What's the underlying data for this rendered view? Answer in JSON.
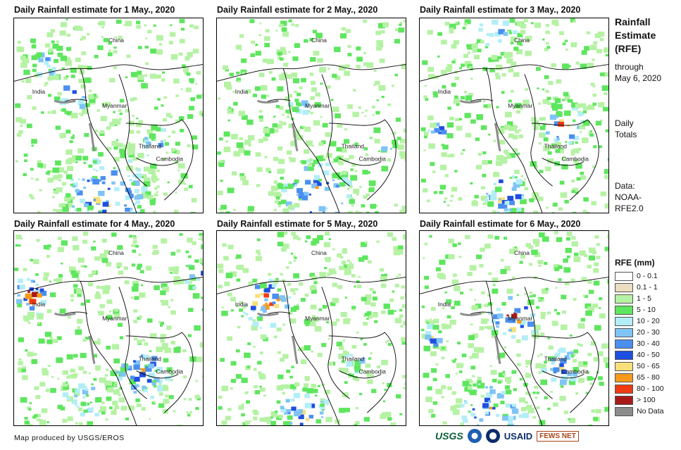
{
  "panels": [
    {
      "title": "Daily Rainfall estimate for 1 May., 2020",
      "labels": {
        "china": "China",
        "india": "India",
        "myanmar": "Myanmar",
        "thailand": "Thailand",
        "cambodia": "Cambodia"
      }
    },
    {
      "title": "Daily Rainfall estimate for 2 May., 2020",
      "labels": {
        "china": "China",
        "india": "India",
        "myanmar": "Myanmar",
        "thailand": "Thailand",
        "cambodia": "Cambodia"
      }
    },
    {
      "title": "Daily Rainfall estimate for 3 May., 2020",
      "labels": {
        "china": "China",
        "india": "India",
        "myanmar": "Myanmar",
        "thailand": "Thailand",
        "cambodia": "Cambodia"
      }
    },
    {
      "title": "Daily Rainfall estimate for 4 May., 2020",
      "labels": {
        "china": "China",
        "india": "India",
        "myanmar": "Myanmar",
        "thailand": "Thailand",
        "cambodia": "Cambodia"
      }
    },
    {
      "title": "Daily Rainfall estimate for 5 May., 2020",
      "labels": {
        "china": "China",
        "india": "India",
        "myanmar": "Myanmar",
        "thailand": "Thailand",
        "cambodia": "Cambodia"
      }
    },
    {
      "title": "Daily Rainfall estimate for 6 May., 2020",
      "labels": {
        "china": "China",
        "india": "India",
        "myanmar": "Myanmar",
        "thailand": "Thailand",
        "cambodia": "Cambodia"
      }
    }
  ],
  "sidebar": {
    "title_lines": [
      "Rainfall",
      "Estimate",
      "(RFE)"
    ],
    "through_lines": [
      "through",
      "May 6, 2020"
    ],
    "totals_lines": [
      "Daily",
      "Totals"
    ],
    "data_lines": [
      "Data:",
      "NOAA-",
      "RFE2.0"
    ]
  },
  "legend": {
    "title": "RFE (mm)",
    "items": [
      {
        "label": "0 - 0.1",
        "color": "#ffffff"
      },
      {
        "label": "0.1 - 1",
        "color": "#ecdcc0"
      },
      {
        "label": "1 - 5",
        "color": "#b5f2a4"
      },
      {
        "label": "5 - 10",
        "color": "#5ee65e"
      },
      {
        "label": "10 - 20",
        "color": "#b2eef7"
      },
      {
        "label": "20 - 30",
        "color": "#7fc4f5"
      },
      {
        "label": "30 - 40",
        "color": "#4a8ff0"
      },
      {
        "label": "40 - 50",
        "color": "#1f4fe0"
      },
      {
        "label": "50 - 65",
        "color": "#f7e07a"
      },
      {
        "label": "65 - 80",
        "color": "#f59a1c"
      },
      {
        "label": "80 - 100",
        "color": "#ee3a12"
      },
      {
        "label": "> 100",
        "color": "#a81a1a"
      },
      {
        "label": "No Data",
        "color": "#8c8c8c"
      }
    ]
  },
  "footer": {
    "credit": "Map produced by USGS/EROS"
  },
  "logos": {
    "usgs": "USGS",
    "usaid": "USAID",
    "fews": "FEWS NET"
  }
}
